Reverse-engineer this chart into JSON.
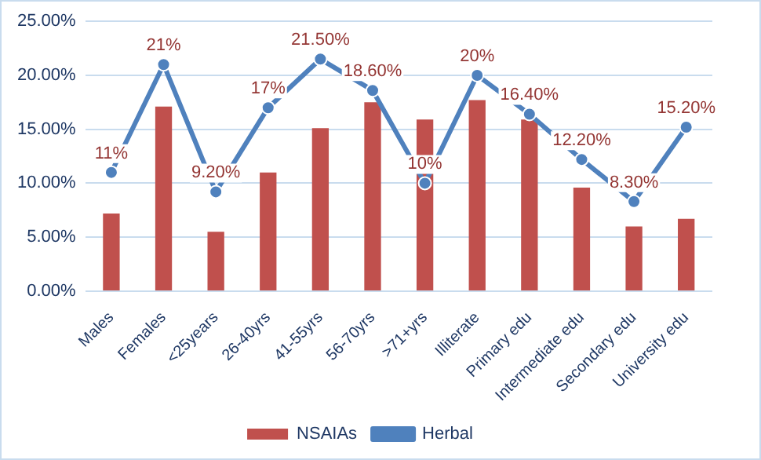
{
  "chart_data": {
    "type": "bar",
    "categories": [
      "Males",
      "Females",
      "<25years",
      "26-40yrs",
      "41-55yrs",
      "56-70yrs",
      ">71+yrs",
      "Illiterate",
      "Primary edu",
      "Intermediate edu",
      "Secondary edu",
      "University edu"
    ],
    "series": [
      {
        "name": "NSAIAs",
        "color": "#c0504d",
        "values": [
          7.2,
          17.1,
          5.5,
          11.0,
          15.1,
          17.5,
          15.9,
          17.7,
          15.9,
          9.6,
          6.0,
          6.7
        ]
      },
      {
        "name": "Herbal",
        "type": "line",
        "color": "#4f81bd",
        "marker": "circle",
        "values": [
          11,
          21,
          9.2,
          17,
          21.5,
          18.6,
          10,
          20,
          16.4,
          12.2,
          8.3,
          15.2
        ],
        "value_labels": [
          "11%",
          "21%",
          "9.20%",
          "17%",
          "21.50%",
          "18.60%",
          "10%",
          "20%",
          "16.40%",
          "12.20%",
          "8.30%",
          "15.20%"
        ]
      }
    ],
    "ylim": [
      0,
      25
    ],
    "yticks": [
      {
        "value": 0,
        "label": "0.00%"
      },
      {
        "value": 5,
        "label": "5.00%"
      },
      {
        "value": 10,
        "label": "10.00%"
      },
      {
        "value": 15,
        "label": "15.00%"
      },
      {
        "value": 20,
        "label": "20.00%"
      },
      {
        "value": 25,
        "label": "25.00%"
      }
    ],
    "grid": "y",
    "legend": "bottom"
  }
}
